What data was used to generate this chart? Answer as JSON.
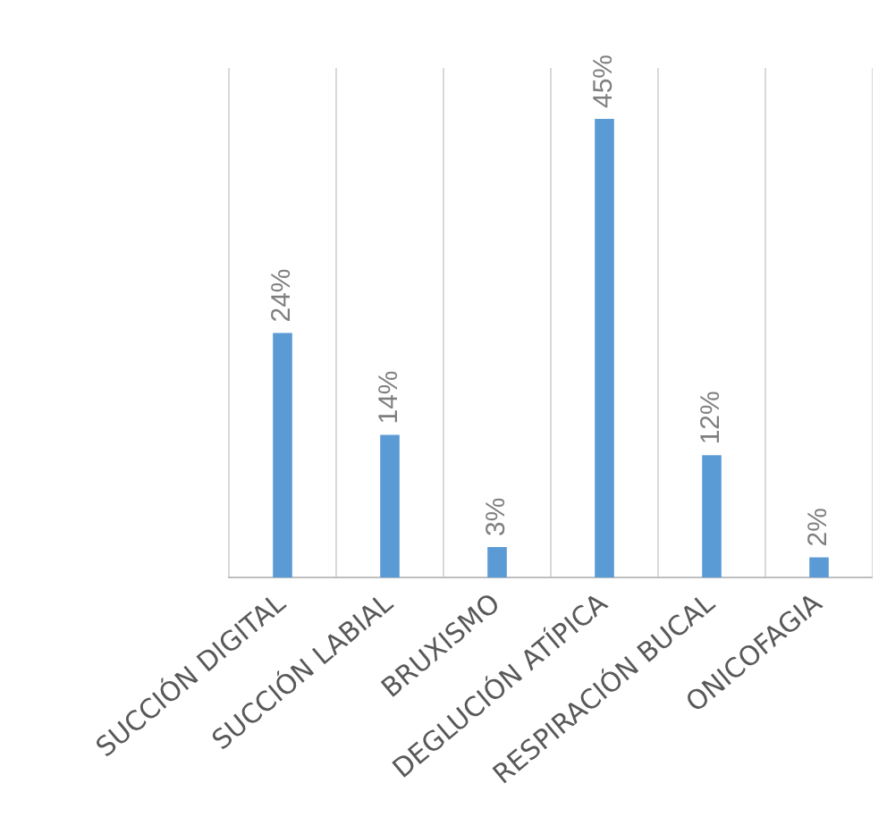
{
  "chart_data": {
    "type": "bar",
    "categories": [
      "SUCCIÓN DIGITAL",
      "SUCCIÓN LABIAL",
      "BRUXISMO",
      "DEGLUCIÓN ATÍPICA",
      "RESPIRACIÓN BUCAL",
      "ONICOFAGIA"
    ],
    "values": [
      24,
      14,
      3,
      45,
      12,
      2
    ],
    "color": "#5b9bd5",
    "value_labels": [
      "24%",
      "14%",
      "3%",
      "45%",
      "12%",
      "2%"
    ],
    "grid": "x",
    "legend": false
  }
}
